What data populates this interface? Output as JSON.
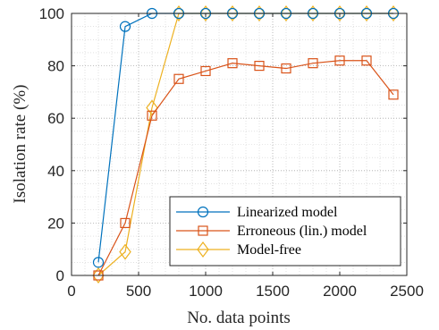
{
  "chart_data": {
    "type": "line",
    "xlabel": "No. data points",
    "ylabel": "Isolation rate (%)",
    "xlim": [
      0,
      2500
    ],
    "ylim": [
      0,
      100
    ],
    "xticks": [
      "0",
      "500",
      "1000",
      "1500",
      "2000",
      "2500"
    ],
    "yticks": [
      "0",
      "20",
      "40",
      "60",
      "80",
      "100"
    ],
    "grid": "on (major and minor, dotted)",
    "legend_position": "bottom-right",
    "x": [
      200,
      400,
      600,
      800,
      1000,
      1200,
      1400,
      1600,
      1800,
      2000,
      2200,
      2400
    ],
    "series": [
      {
        "name": "Linearized model",
        "color": "#0072BD",
        "marker": "circle",
        "values": [
          5,
          95,
          100,
          100,
          100,
          100,
          100,
          100,
          100,
          100,
          100,
          100
        ]
      },
      {
        "name": "Erroneous (lin.) model",
        "color": "#D95319",
        "marker": "square",
        "values": [
          0,
          20,
          61,
          75,
          78,
          81,
          80,
          79,
          81,
          82,
          82,
          69
        ]
      },
      {
        "name": "Model-free",
        "color": "#EDB120",
        "marker": "diamond",
        "values": [
          0,
          9,
          64,
          100,
          100,
          100,
          100,
          100,
          100,
          100,
          100,
          100
        ]
      }
    ]
  }
}
